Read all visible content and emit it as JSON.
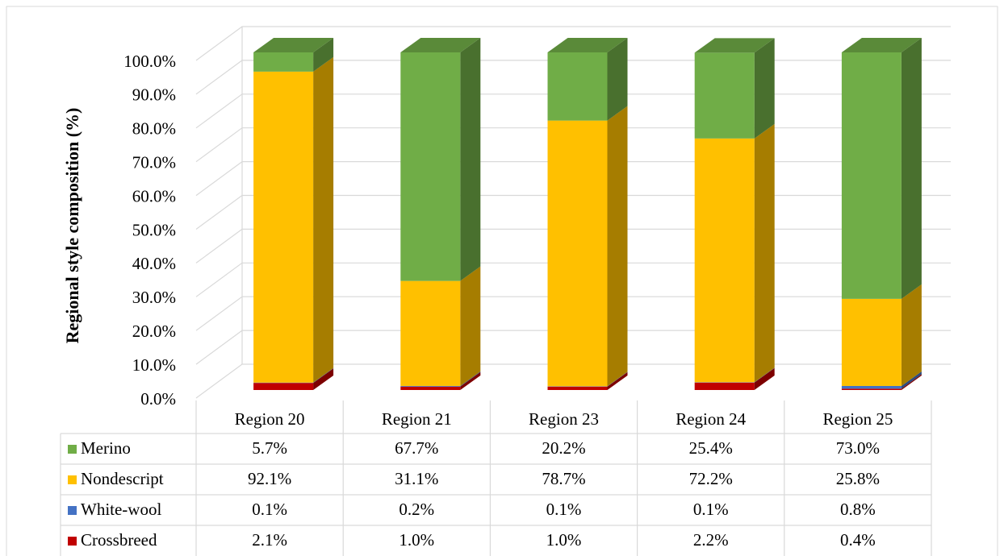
{
  "chart_data": {
    "type": "bar3d_stacked",
    "y_label": "Regional style composition (%)",
    "categories": [
      "Region 20",
      "Region 21",
      "Region 23",
      "Region 24",
      "Region 25"
    ],
    "series": [
      {
        "name": "Merino",
        "color": "#70ad47",
        "values": [
          5.7,
          67.7,
          20.2,
          25.4,
          73.0
        ],
        "value_labels": [
          "5.7%",
          "67.7%",
          "20.2%",
          "25.4%",
          "73.0%"
        ]
      },
      {
        "name": "Nondescript",
        "color": "#ffc000",
        "values": [
          92.1,
          31.1,
          78.7,
          72.2,
          25.8
        ],
        "value_labels": [
          "92.1%",
          "31.1%",
          "78.7%",
          "72.2%",
          "25.8%"
        ]
      },
      {
        "name": "White-wool",
        "color": "#4472c4",
        "values": [
          0.1,
          0.2,
          0.1,
          0.1,
          0.8
        ],
        "value_labels": [
          "0.1%",
          "0.2%",
          "0.1%",
          "0.1%",
          "0.8%"
        ]
      },
      {
        "name": "Crossbreed",
        "color": "#c00000",
        "values": [
          2.1,
          1.0,
          1.0,
          2.2,
          0.4
        ],
        "value_labels": [
          "2.1%",
          "1.0%",
          "1.0%",
          "2.2%",
          "0.4%"
        ]
      }
    ],
    "ylim": [
      0,
      100
    ],
    "yticks": [
      {
        "value": 0,
        "label": "0.0%"
      },
      {
        "value": 10,
        "label": "10.0%"
      },
      {
        "value": 20,
        "label": "20.0%"
      },
      {
        "value": 30,
        "label": "30.0%"
      },
      {
        "value": 40,
        "label": "40.0%"
      },
      {
        "value": 50,
        "label": "50.0%"
      },
      {
        "value": 60,
        "label": "60.0%"
      },
      {
        "value": 70,
        "label": "70.0%"
      },
      {
        "value": 80,
        "label": "80.0%"
      },
      {
        "value": 90,
        "label": "90.0%"
      },
      {
        "value": 100,
        "label": "100.0%"
      }
    ],
    "grid": true
  }
}
